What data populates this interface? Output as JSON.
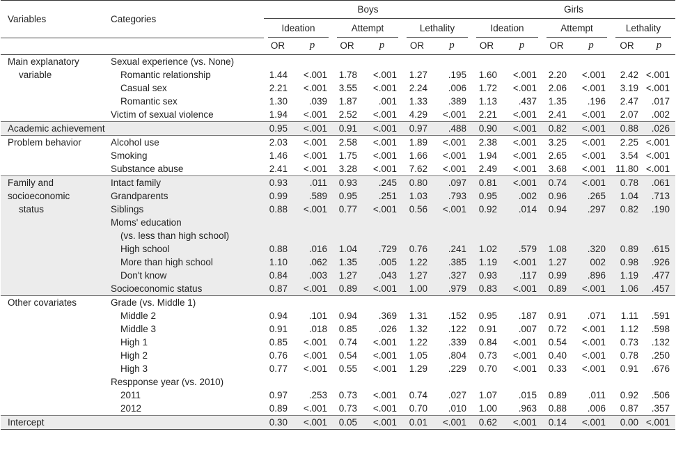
{
  "headers": {
    "variables": "Variables",
    "categories": "Categories",
    "boys": "Boys",
    "girls": "Girls",
    "ideation": "Ideation",
    "attempt": "Attempt",
    "lethality": "Lethality",
    "or": "OR",
    "p": "p"
  },
  "sections": [
    {
      "variable": [
        "Main explanatory",
        "variable"
      ],
      "shade": false,
      "rows": [
        {
          "cat": "Sexual experience (vs. None)",
          "indent": 0,
          "vals": null
        },
        {
          "cat": "Romantic relationship",
          "indent": 1,
          "vals": [
            "1.44",
            "<.001",
            "1.78",
            "<.001",
            "1.27",
            ".195",
            "1.60",
            "<.001",
            "2.20",
            "<.001",
            "2.42",
            "<.001"
          ]
        },
        {
          "cat": "Casual sex",
          "indent": 1,
          "vals": [
            "2.21",
            "<.001",
            "3.55",
            "<.001",
            "2.24",
            ".006",
            "1.72",
            "<.001",
            "2.06",
            "<.001",
            "3.19",
            "<.001"
          ]
        },
        {
          "cat": "Romantic sex",
          "indent": 1,
          "vals": [
            "1.30",
            ".039",
            "1.87",
            ".001",
            "1.33",
            ".389",
            "1.13",
            ".437",
            "1.35",
            ".196",
            "2.47",
            ".017"
          ]
        },
        {
          "cat": "Victim of sexual violence",
          "indent": 0,
          "vals": [
            "1.94",
            "<.001",
            "2.52",
            "<.001",
            "4.29",
            "<.001",
            "2.21",
            "<.001",
            "2.41",
            "<.001",
            "2.07",
            ".002"
          ]
        }
      ]
    },
    {
      "variable": [
        "Academic achievement"
      ],
      "shade": true,
      "rows": [
        {
          "cat": "",
          "indent": 0,
          "vals": [
            "0.95",
            "<.001",
            "0.91",
            "<.001",
            "0.97",
            ".488",
            "0.90",
            "<.001",
            "0.82",
            "<.001",
            "0.88",
            ".026"
          ]
        }
      ]
    },
    {
      "variable": [
        "Problem behavior"
      ],
      "shade": false,
      "rows": [
        {
          "cat": "Alcohol use",
          "indent": 0,
          "vals": [
            "2.03",
            "<.001",
            "2.58",
            "<.001",
            "1.89",
            "<.001",
            "2.38",
            "<.001",
            "3.25",
            "<.001",
            "2.25",
            "<.001"
          ]
        },
        {
          "cat": "Smoking",
          "indent": 0,
          "vals": [
            "1.46",
            "<.001",
            "1.75",
            "<.001",
            "1.66",
            "<.001",
            "1.94",
            "<.001",
            "2.65",
            "<.001",
            "3.54",
            "<.001"
          ]
        },
        {
          "cat": "Substance abuse",
          "indent": 0,
          "vals": [
            "2.41",
            "<.001",
            "3.28",
            "<.001",
            "7.62",
            "<.001",
            "2.49",
            "<.001",
            "3.68",
            "<.001",
            "11.80",
            "<.001"
          ]
        }
      ]
    },
    {
      "variable": [
        "Family and",
        "socioeconomic",
        "status"
      ],
      "shade": true,
      "rows": [
        {
          "cat": "Intact family",
          "indent": 0,
          "vals": [
            "0.93",
            ".011",
            "0.93",
            ".245",
            "0.80",
            ".097",
            "0.81",
            "<.001",
            "0.74",
            "<.001",
            "0.78",
            ".061"
          ]
        },
        {
          "cat": "Grandparents",
          "indent": 0,
          "vals": [
            "0.99",
            ".589",
            "0.95",
            ".251",
            "1.03",
            ".793",
            "0.95",
            ".002",
            "0.96",
            ".265",
            "1.04",
            ".713"
          ]
        },
        {
          "cat": "Siblings",
          "indent": 0,
          "vals": [
            "0.88",
            "<.001",
            "0.77",
            "<.001",
            "0.56",
            "<.001",
            "0.92",
            ".014",
            "0.94",
            ".297",
            "0.82",
            ".190"
          ]
        },
        {
          "cat": "Moms' education",
          "indent": 0,
          "vals": null
        },
        {
          "cat": "(vs. less than high school)",
          "indent": 1,
          "vals": null
        },
        {
          "cat": "High school",
          "indent": 1,
          "vals": [
            "0.88",
            ".016",
            "1.04",
            ".729",
            "0.76",
            ".241",
            "1.02",
            ".579",
            "1.08",
            ".320",
            "0.89",
            ".615"
          ]
        },
        {
          "cat": "More than high school",
          "indent": 1,
          "vals": [
            "1.10",
            ".062",
            "1.35",
            ".005",
            "1.22",
            ".385",
            "1.19",
            "<.001",
            "1.27",
            "002",
            "0.98",
            ".926"
          ]
        },
        {
          "cat": "Don't know",
          "indent": 1,
          "vals": [
            "0.84",
            ".003",
            "1.27",
            ".043",
            "1.27",
            ".327",
            "0.93",
            ".117",
            "0.99",
            ".896",
            "1.19",
            ".477"
          ]
        },
        {
          "cat": "Socioeconomic status",
          "indent": 0,
          "vals": [
            "0.87",
            "<.001",
            "0.89",
            "<.001",
            "1.00",
            ".979",
            "0.83",
            "<.001",
            "0.89",
            "<.001",
            "1.06",
            ".457"
          ]
        }
      ]
    },
    {
      "variable": [
        "Other covariates"
      ],
      "shade": false,
      "rows": [
        {
          "cat": "Grade (vs. Middle 1)",
          "indent": 0,
          "vals": null
        },
        {
          "cat": "Middle 2",
          "indent": 1,
          "vals": [
            "0.94",
            ".101",
            "0.94",
            ".369",
            "1.31",
            ".152",
            "0.95",
            ".187",
            "0.91",
            ".071",
            "1.11",
            ".591"
          ]
        },
        {
          "cat": "Middle 3",
          "indent": 1,
          "vals": [
            "0.91",
            ".018",
            "0.85",
            ".026",
            "1.32",
            ".122",
            "0.91",
            ".007",
            "0.72",
            "<.001",
            "1.12",
            ".598"
          ]
        },
        {
          "cat": "High 1",
          "indent": 1,
          "vals": [
            "0.85",
            "<.001",
            "0.74",
            "<.001",
            "1.22",
            ".339",
            "0.84",
            "<.001",
            "0.54",
            "<.001",
            "0.73",
            ".132"
          ]
        },
        {
          "cat": "High 2",
          "indent": 1,
          "vals": [
            "0.76",
            "<.001",
            "0.54",
            "<.001",
            "1.05",
            ".804",
            "0.73",
            "<.001",
            "0.40",
            "<.001",
            "0.78",
            ".250"
          ]
        },
        {
          "cat": "High 3",
          "indent": 1,
          "vals": [
            "0.77",
            "<.001",
            "0.55",
            "<.001",
            "1.29",
            ".229",
            "0.70",
            "<.001",
            "0.33",
            "<.001",
            "0.91",
            ".676"
          ]
        },
        {
          "cat": "Respponse year (vs. 2010)",
          "indent": 0,
          "vals": null
        },
        {
          "cat": "2011",
          "indent": 1,
          "vals": [
            "0.97",
            ".253",
            "0.73",
            "<.001",
            "0.74",
            ".027",
            "1.07",
            ".015",
            "0.89",
            ".011",
            "0.92",
            ".506"
          ]
        },
        {
          "cat": "2012",
          "indent": 1,
          "vals": [
            "0.89",
            "<.001",
            "0.73",
            "<.001",
            "0.70",
            ".010",
            "1.00",
            ".963",
            "0.88",
            ".006",
            "0.87",
            ".357"
          ]
        }
      ]
    },
    {
      "variable": [
        "Intercept"
      ],
      "shade": true,
      "rows": [
        {
          "cat": "",
          "indent": 0,
          "vals": [
            "0.30",
            "<.001",
            "0.05",
            "<.001",
            "0.01",
            "<.001",
            "0.62",
            "<.001",
            "0.14",
            "<.001",
            "0.00",
            "<.001"
          ]
        }
      ]
    }
  ]
}
